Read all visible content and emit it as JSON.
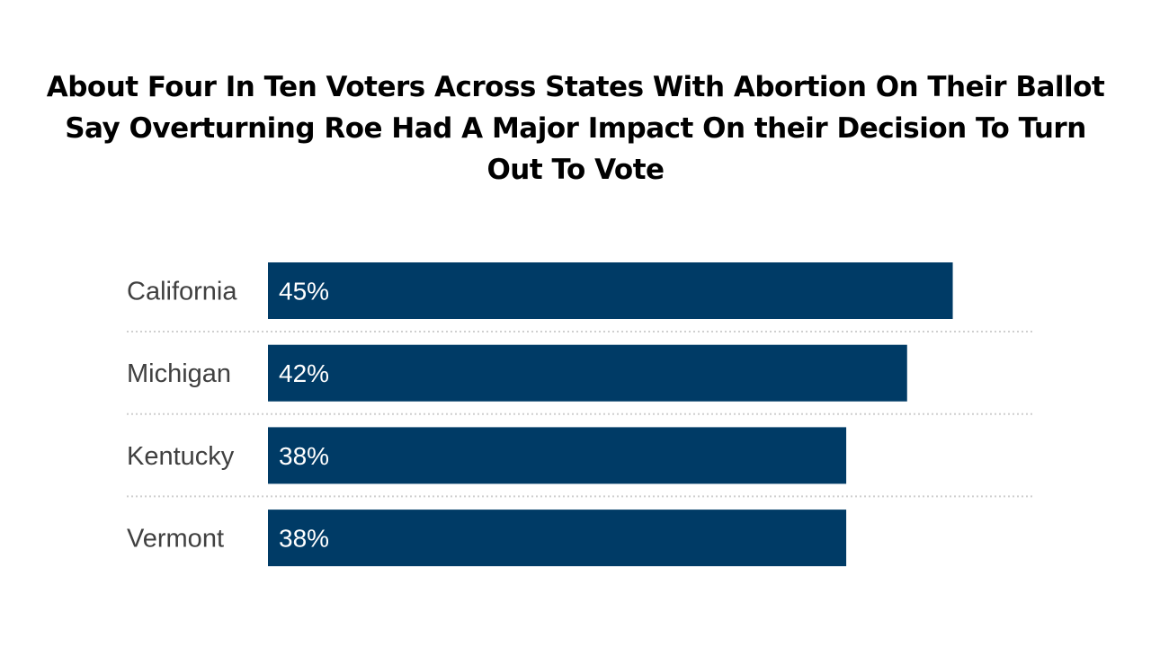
{
  "chart_data": {
    "type": "bar",
    "orientation": "horizontal",
    "title": "About Four In Ten Voters Across States With Abortion On Their Ballot Say Overturning Roe Had A Major Impact On their Decision To Turn Out To Vote",
    "categories": [
      "California",
      "Michigan",
      "Kentucky",
      "Vermont"
    ],
    "values": [
      45,
      42,
      38,
      38
    ],
    "data_labels": [
      "45%",
      "42%",
      "38%",
      "38%"
    ],
    "unit": "%",
    "xlim": [
      0,
      52
    ],
    "bar_color": "#003b66",
    "grid": false,
    "legend": "none"
  }
}
